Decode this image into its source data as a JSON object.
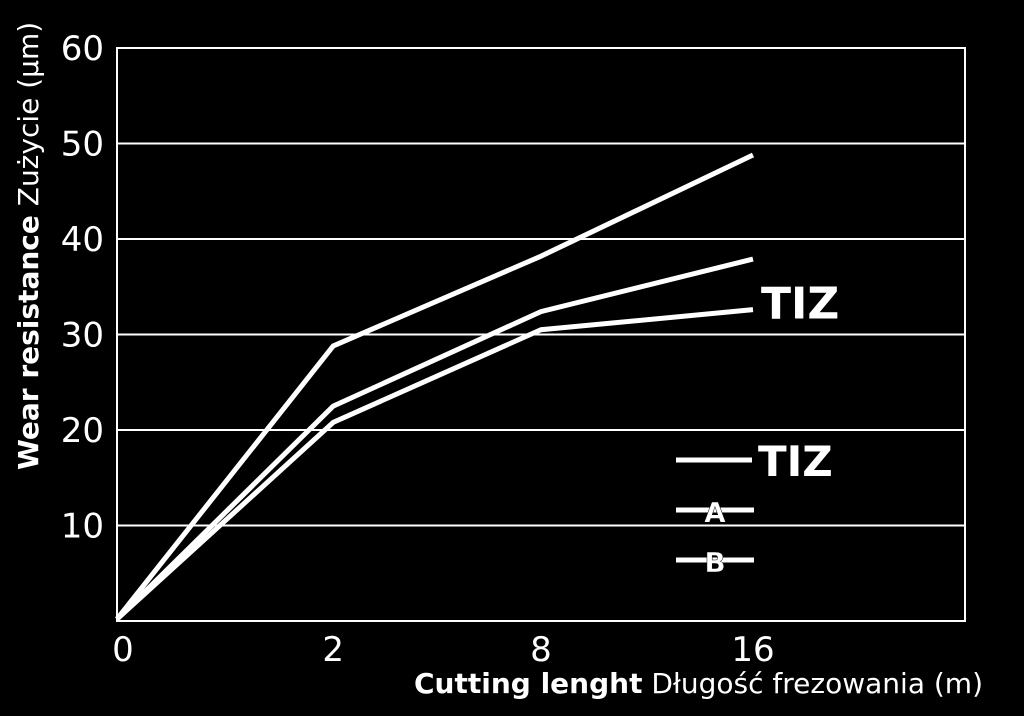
{
  "chart_data": {
    "type": "line",
    "x_categories": [
      "0",
      "2",
      "8",
      "16"
    ],
    "x": [
      0,
      2.55,
      5.0,
      7.5
    ],
    "ylim": [
      0,
      60
    ],
    "yticks": [
      10,
      20,
      30,
      40,
      50,
      60
    ],
    "grid": true,
    "series": [
      {
        "values": [
          0.2,
          28.8,
          38.2,
          48.8
        ]
      },
      {
        "values": [
          0.2,
          22.5,
          32.4,
          37.9
        ]
      },
      {
        "values": [
          0.2,
          20.8,
          30.5,
          32.6
        ]
      }
    ],
    "end_label": "TIZ",
    "legend": {
      "position": "bottom-right",
      "entries": [
        "TIZ",
        "A",
        "B"
      ]
    },
    "ylabel": {
      "bold": "Wear resistance",
      "normal": " Zużycie (μm)"
    },
    "xlabel": {
      "bold": "Cutting lenght",
      "normal": " Długość frezowania (m)"
    },
    "colors": {
      "background": "#000000",
      "foreground": "#ffffff"
    }
  }
}
